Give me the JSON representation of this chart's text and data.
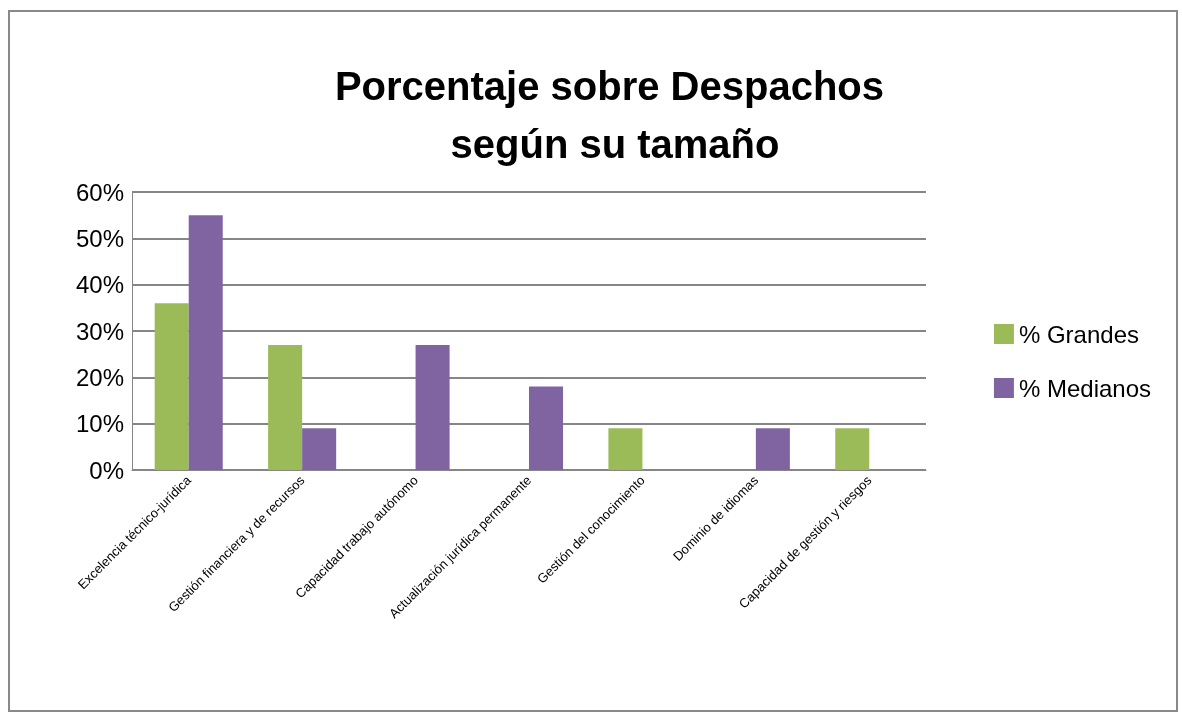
{
  "chart_data": {
    "type": "bar",
    "title": "Porcentaje sobre Despachos según su tamaño",
    "categories": [
      "Excelencia técnico-jurídica",
      "Gestión financiera y de recursos",
      "Capacidad trabajo autónomo",
      "Actualización jurídica permanente",
      "Gestión del conocimiento",
      "Dominio de idiomas",
      "Capacidad de gestión y riesgos"
    ],
    "series": [
      {
        "name": "% Grandes",
        "color": "#9bbb59",
        "values": [
          36,
          27,
          0,
          0,
          9,
          0,
          9
        ]
      },
      {
        "name": "% Medianos",
        "color": "#8064a2",
        "values": [
          55,
          9,
          27,
          18,
          0,
          9,
          0
        ]
      }
    ],
    "ylim": [
      0,
      60
    ],
    "yticks": [
      {
        "value": 0,
        "label": "0%"
      },
      {
        "value": 10,
        "label": "10%"
      },
      {
        "value": 20,
        "label": "20%"
      },
      {
        "value": 30,
        "label": "30%"
      },
      {
        "value": 40,
        "label": "40%"
      },
      {
        "value": 50,
        "label": "50%"
      },
      {
        "value": 60,
        "label": "60%"
      }
    ],
    "grid": "y",
    "legend": "right"
  }
}
